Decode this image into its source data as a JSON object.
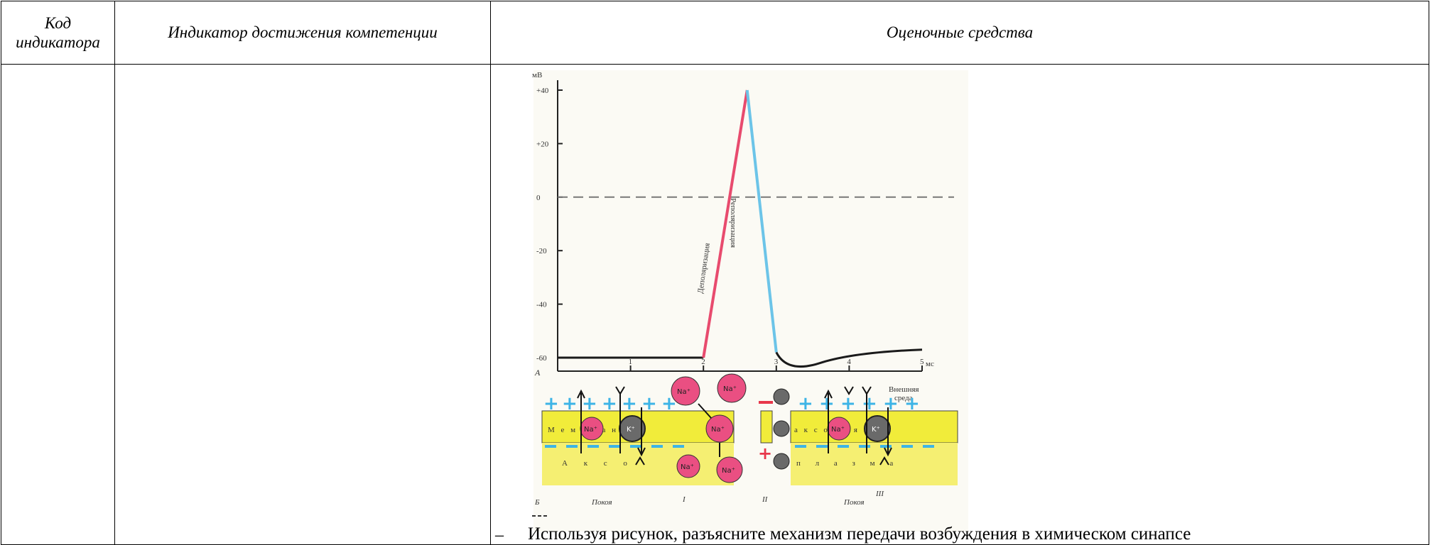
{
  "table": {
    "headers": {
      "code": "Код индикатора",
      "code_line1": "Код",
      "code_line2": "индикатора",
      "indicator": "Индикатор достижения компетенции",
      "assessment": "Оценочные средства"
    }
  },
  "figure": {
    "units_y": "мВ",
    "units_x": "мс",
    "y_ticks": [
      "+40",
      "+20",
      "0",
      "-20",
      "-40",
      "-60"
    ],
    "x_ticks": [
      "1",
      "2",
      "3",
      "4",
      "5"
    ],
    "label_depol": "Деполяризация",
    "label_repol": "Реполяризация",
    "panel_a": "А",
    "panel_b": "Б",
    "outer_env": "Внешняя среда",
    "outer_env_1": "Внешняя",
    "outer_env_2": "среда",
    "membrane_left": "М е м б р а н",
    "membrane_right": "а к с о н а я",
    "axon_left": "А к с о",
    "axon_right": "п л а з м а",
    "rest_left": "Покоя",
    "rest_right": "Покоя",
    "roman_1": "I",
    "roman_2": "II",
    "roman_3": "III",
    "na": "Na⁺",
    "k": "K⁺",
    "chart_colors": {
      "depol": "#e84b6e",
      "repol": "#6cc4e8",
      "baseline": "#1a1a1a",
      "membrane": "#f1ec3a",
      "na_ion": "#ea4f82",
      "k_ion": "#6a6a6a",
      "plus": "#3db4e6"
    }
  },
  "caption": {
    "dash": "–",
    "text": "Используя рисунок, разъясните механизм передачи возбуждения в химическом синапсе"
  },
  "chart_data": {
    "type": "line",
    "title": "",
    "xlabel": "мс",
    "ylabel": "мВ",
    "xlim": [
      0,
      5
    ],
    "ylim": [
      -65,
      40
    ],
    "series": [
      {
        "name": "Деполяризация",
        "x": [
          2.0,
          2.6
        ],
        "y": [
          -60,
          40
        ]
      },
      {
        "name": "Реполяризация",
        "x": [
          2.6,
          3.0
        ],
        "y": [
          40,
          -58
        ]
      }
    ]
  }
}
